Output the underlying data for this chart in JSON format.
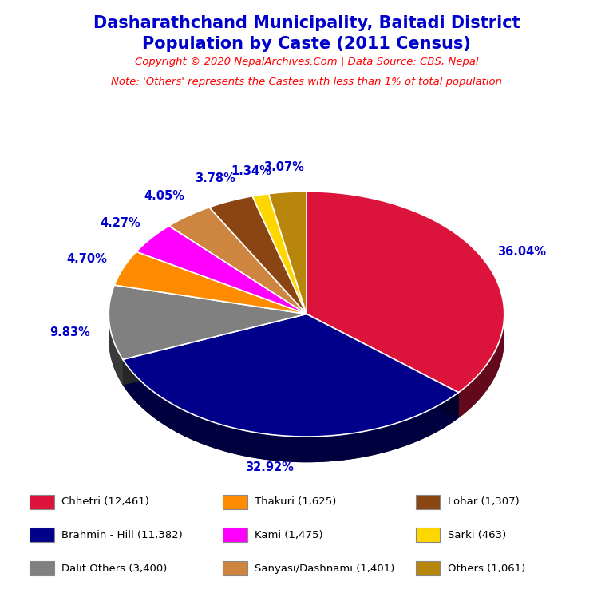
{
  "title_line1": "Dasharathchand Municipality, Baitadi District",
  "title_line2": "Population by Caste (2011 Census)",
  "title_color": "#0000CD",
  "copyright_text": "Copyright © 2020 NepalArchives.Com | Data Source: CBS, Nepal",
  "copyright_color": "#FF0000",
  "note_text": "Note: 'Others' represents the Castes with less than 1% of total population",
  "note_color": "#FF0000",
  "labels": [
    "Chhetri",
    "Brahmin - Hill",
    "Dalit Others",
    "Thakuri",
    "Kami",
    "Sanyasi/Dashnami",
    "Lohar",
    "Sarki",
    "Others"
  ],
  "values": [
    12461,
    11382,
    3400,
    1625,
    1475,
    1401,
    1307,
    463,
    1061
  ],
  "percentages": [
    "36.04%",
    "32.92%",
    "9.83%",
    "4.70%",
    "4.27%",
    "4.05%",
    "3.78%",
    "1.34%",
    "3.07%"
  ],
  "colors": [
    "#DC143C",
    "#00008B",
    "#808080",
    "#FF8C00",
    "#FF00FF",
    "#CD853F",
    "#8B4513",
    "#FFD700",
    "#B8860B"
  ],
  "legend_labels": [
    "Chhetri (12,461)",
    "Thakuri (1,625)",
    "Lohar (1,307)",
    "Brahmin - Hill (11,382)",
    "Kami (1,475)",
    "Sarki (463)",
    "Dalit Others (3,400)",
    "Sanyasi/Dashnami (1,401)",
    "Others (1,061)"
  ],
  "legend_colors": [
    "#DC143C",
    "#FF8C00",
    "#8B4513",
    "#00008B",
    "#FF00FF",
    "#FFD700",
    "#808080",
    "#CD853F",
    "#B8860B"
  ],
  "label_color": "#0000CD",
  "label_fontsize": 10.5
}
